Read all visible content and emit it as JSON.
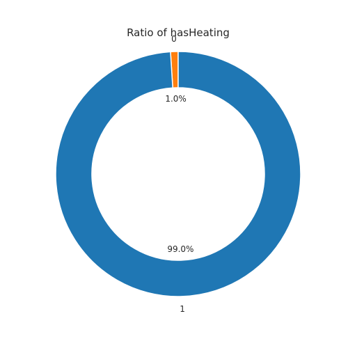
{
  "chart_data": {
    "type": "pie",
    "title": "Ratio of hasHeating",
    "slices": [
      {
        "label": "0",
        "value": 1.0,
        "pct_label": "1.0%",
        "color": "#ff7f0e"
      },
      {
        "label": "1",
        "value": 99.0,
        "pct_label": "99.0%",
        "color": "#1f77b4"
      }
    ],
    "donut": true,
    "legend": "none"
  }
}
